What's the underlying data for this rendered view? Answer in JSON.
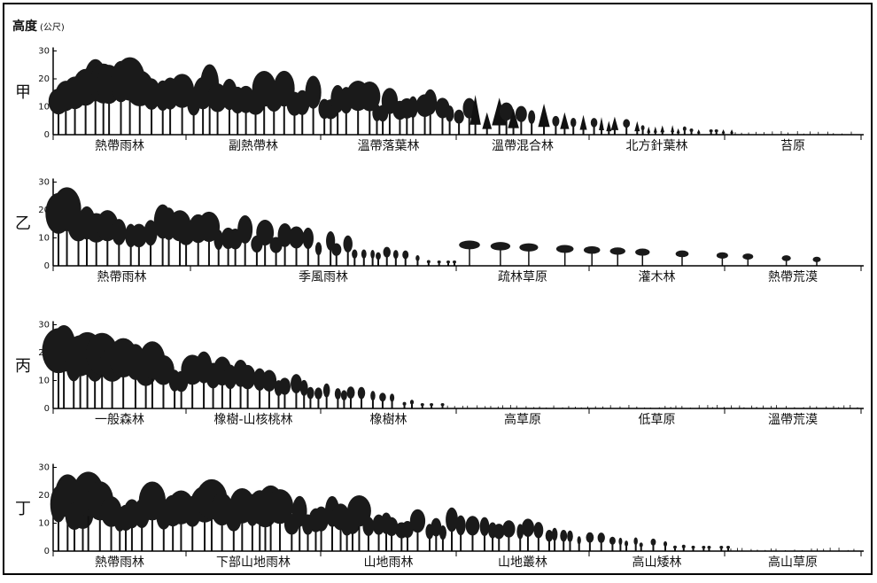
{
  "header": {
    "title": "高度",
    "unit": "(公尺)"
  },
  "panels": [
    {
      "label": "甲",
      "yticks": [
        0,
        10,
        20,
        30
      ],
      "zones": [
        "熱帶雨林",
        "副熱帶林",
        "溫帶落葉林",
        "溫帶混合林",
        "北方針葉林",
        "苔原"
      ]
    },
    {
      "label": "乙",
      "yticks": [
        0,
        10,
        20,
        30
      ],
      "zones": [
        "熱帶雨林",
        "季風雨林",
        "疏林草原",
        "灌木林",
        "熱帶荒漠"
      ]
    },
    {
      "label": "丙",
      "yticks": [
        0,
        10,
        20,
        30
      ],
      "zones": [
        "一般森林",
        "橡樹-山核桃林",
        "橡樹林",
        "高草原",
        "低草原",
        "溫帶荒漠"
      ]
    },
    {
      "label": "丁",
      "yticks": [
        0,
        10,
        20,
        30
      ],
      "zones": [
        "熱帶雨林",
        "下部山地雨林",
        "山地雨林",
        "山地叢林",
        "高山矮林",
        "高山草原"
      ]
    }
  ]
}
